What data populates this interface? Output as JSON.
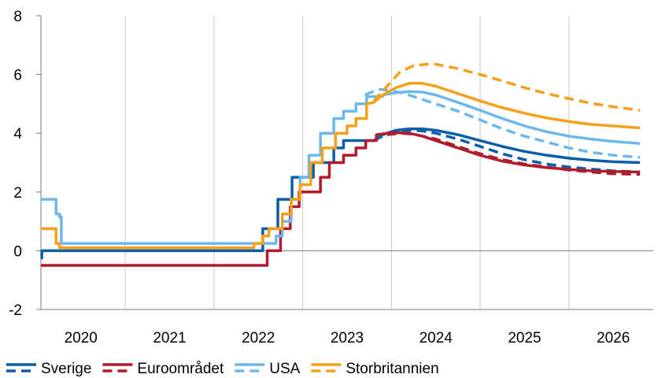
{
  "chart_data": {
    "type": "line",
    "title": "",
    "xlabel": "",
    "ylabel": "",
    "xlim": [
      2019.55,
      2026.45
    ],
    "ylim": [
      -2,
      8
    ],
    "yticks": [
      -2,
      0,
      2,
      4,
      6,
      8
    ],
    "xtick_labels": [
      "2020",
      "2021",
      "2022",
      "2023",
      "2024",
      "2025",
      "2026"
    ],
    "xtick_positions": [
      2020,
      2021,
      2022,
      2023,
      2024,
      2025,
      2026
    ],
    "grid": "vertical",
    "legend_position": "bottom-left",
    "colors": {
      "Sverige": "#0a5ea8",
      "Euroområdet": "#b01c2e",
      "USA": "#6cb8ec",
      "Storbritannien": "#f5a01a"
    },
    "legend": [
      "Sverige",
      "Euroområdet",
      "USA",
      "Storbritannien"
    ],
    "series": [
      {
        "name": "Sverige",
        "style": "solid",
        "x": [
          2019.55,
          2019.56,
          2019.56,
          2021.85,
          2021.85,
          2022.05,
          2022.05,
          2022.22,
          2022.22,
          2022.38,
          2022.38,
          2022.62,
          2022.62,
          2022.85,
          2022.85,
          2022.96,
          2022.96,
          2023.3,
          2023.4,
          2023.55,
          2023.7,
          2023.85,
          2024.0,
          2024.25,
          2024.5,
          2024.75,
          2025.0,
          2025.25,
          2025.5,
          2025.75,
          2026.0,
          2026.3
        ],
        "y": [
          -0.25,
          -0.25,
          0,
          0,
          0,
          0,
          0.75,
          0.75,
          1.75,
          1.75,
          2.5,
          2.5,
          3.0,
          3.0,
          3.5,
          3.5,
          3.75,
          3.75,
          3.95,
          4.1,
          4.15,
          4.15,
          4.1,
          3.95,
          3.75,
          3.55,
          3.38,
          3.25,
          3.15,
          3.08,
          3.03,
          3.0
        ]
      },
      {
        "name": "Sverige",
        "style": "dashed",
        "x": [
          2023.3,
          2023.4,
          2023.55,
          2023.7,
          2023.85,
          2024.0,
          2024.25,
          2024.5,
          2024.75,
          2025.0,
          2025.25,
          2025.5,
          2025.75,
          2026.0,
          2026.3
        ],
        "y": [
          3.75,
          3.9,
          4.05,
          4.1,
          4.08,
          4.0,
          3.8,
          3.55,
          3.3,
          3.1,
          2.95,
          2.85,
          2.78,
          2.72,
          2.68
        ]
      },
      {
        "name": "Euroområdet",
        "style": "solid",
        "x": [
          2019.55,
          2022.1,
          2022.1,
          2022.25,
          2022.25,
          2022.36,
          2022.36,
          2022.46,
          2022.46,
          2022.7,
          2022.7,
          2022.8,
          2022.8,
          2022.96,
          2022.96,
          2023.1,
          2023.1,
          2023.21,
          2023.21,
          2023.33,
          2023.33,
          2023.45,
          2023.55,
          2023.7,
          2023.85,
          2024.0,
          2024.25,
          2024.5,
          2024.75,
          2025.0,
          2025.25,
          2025.5,
          2025.75,
          2026.0,
          2026.3
        ],
        "y": [
          -0.5,
          -0.5,
          0,
          0,
          0.75,
          0.75,
          1.5,
          1.5,
          2.0,
          2.0,
          2.5,
          2.5,
          3.0,
          3.0,
          3.25,
          3.25,
          3.5,
          3.5,
          3.75,
          3.75,
          3.95,
          4.0,
          4.02,
          4.0,
          3.9,
          3.75,
          3.5,
          3.25,
          3.05,
          2.92,
          2.83,
          2.77,
          2.72,
          2.7,
          2.68
        ]
      },
      {
        "name": "Euroområdet",
        "style": "dashed",
        "x": [
          2023.45,
          2023.6,
          2023.75,
          2024.0,
          2024.25,
          2024.5,
          2024.75,
          2025.0,
          2025.25,
          2025.5,
          2025.75,
          2026.0,
          2026.3
        ],
        "y": [
          3.95,
          4.0,
          3.97,
          3.8,
          3.55,
          3.3,
          3.1,
          2.95,
          2.85,
          2.75,
          2.68,
          2.62,
          2.6
        ]
      },
      {
        "name": "USA",
        "style": "solid",
        "x": [
          2019.55,
          2019.72,
          2019.72,
          2019.76,
          2019.76,
          2019.78,
          2019.78,
          2022.2,
          2022.2,
          2022.27,
          2022.27,
          2022.37,
          2022.37,
          2022.47,
          2022.47,
          2022.57,
          2022.57,
          2022.7,
          2022.7,
          2022.85,
          2022.85,
          2022.96,
          2022.96,
          2023.1,
          2023.1,
          2023.22,
          2023.22,
          2023.4,
          2023.4,
          2023.55,
          2023.7,
          2023.85,
          2024.0,
          2024.25,
          2024.5,
          2024.75,
          2025.0,
          2025.25,
          2025.5,
          2025.75,
          2026.0,
          2026.3
        ],
        "y": [
          1.75,
          1.75,
          1.25,
          1.25,
          1.15,
          1.15,
          0.25,
          0.25,
          0.5,
          0.5,
          1.0,
          1.0,
          1.75,
          1.75,
          2.5,
          2.5,
          3.25,
          3.25,
          4.0,
          4.0,
          4.5,
          4.5,
          4.75,
          4.75,
          5.0,
          5.0,
          5.25,
          5.25,
          5.3,
          5.38,
          5.42,
          5.4,
          5.3,
          5.05,
          4.78,
          4.5,
          4.25,
          4.05,
          3.9,
          3.8,
          3.72,
          3.65
        ]
      },
      {
        "name": "USA",
        "style": "dashed",
        "x": [
          2023.2,
          2023.35,
          2023.5,
          2023.65,
          2023.8,
          2024.0,
          2024.25,
          2024.5,
          2024.75,
          2025.0,
          2025.25,
          2025.5,
          2025.75,
          2026.0,
          2026.3
        ],
        "y": [
          5.3,
          5.5,
          5.45,
          5.35,
          5.2,
          5.0,
          4.75,
          4.45,
          4.15,
          3.9,
          3.7,
          3.5,
          3.35,
          3.25,
          3.18
        ]
      },
      {
        "name": "Storbritannien",
        "style": "solid",
        "x": [
          2019.55,
          2019.72,
          2019.72,
          2019.76,
          2019.76,
          2021.95,
          2021.95,
          2022.05,
          2022.05,
          2022.12,
          2022.12,
          2022.27,
          2022.27,
          2022.37,
          2022.37,
          2022.47,
          2022.47,
          2022.59,
          2022.59,
          2022.72,
          2022.72,
          2022.87,
          2022.87,
          2023.0,
          2023.0,
          2023.1,
          2023.1,
          2023.22,
          2023.22,
          2023.3,
          2023.4,
          2023.55,
          2023.7,
          2023.85,
          2024.0,
          2024.25,
          2024.5,
          2024.75,
          2025.0,
          2025.25,
          2025.5,
          2025.75,
          2026.0,
          2026.3
        ],
        "y": [
          0.75,
          0.75,
          0.25,
          0.25,
          0.1,
          0.1,
          0.25,
          0.25,
          0.5,
          0.5,
          0.75,
          0.75,
          1.25,
          1.25,
          1.75,
          1.75,
          2.25,
          2.25,
          3.0,
          3.0,
          3.5,
          3.5,
          4.0,
          4.0,
          4.25,
          4.25,
          4.5,
          4.5,
          5.0,
          5.05,
          5.3,
          5.55,
          5.7,
          5.7,
          5.6,
          5.35,
          5.1,
          4.87,
          4.68,
          4.52,
          4.4,
          4.3,
          4.25,
          4.18
        ]
      },
      {
        "name": "Storbritannien",
        "style": "dashed",
        "x": [
          2023.3,
          2023.45,
          2023.6,
          2023.75,
          2023.9,
          2024.0,
          2024.25,
          2024.5,
          2024.75,
          2025.0,
          2025.25,
          2025.5,
          2025.75,
          2026.0,
          2026.3
        ],
        "y": [
          5.1,
          5.6,
          6.1,
          6.3,
          6.35,
          6.35,
          6.2,
          6.0,
          5.78,
          5.55,
          5.35,
          5.18,
          5.02,
          4.9,
          4.78
        ]
      }
    ]
  }
}
